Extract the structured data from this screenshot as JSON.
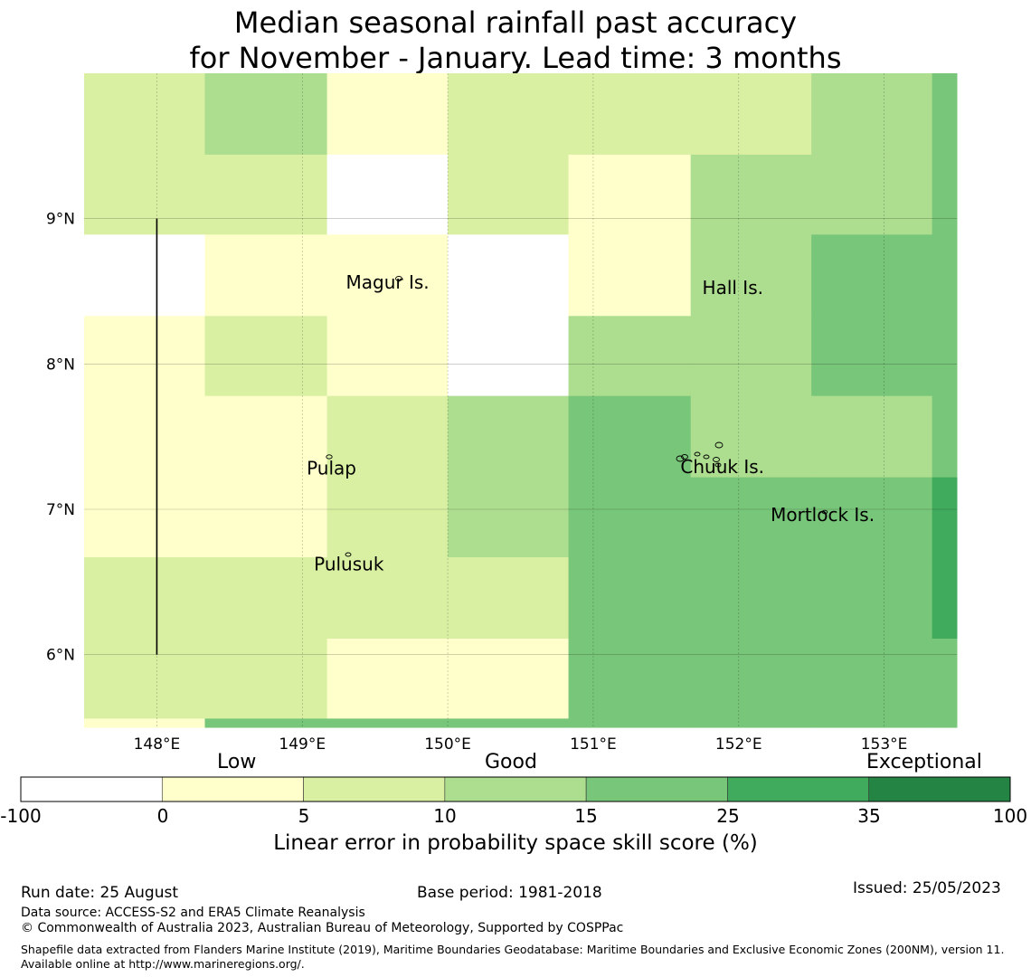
{
  "title": {
    "line1": "Median seasonal rainfall past accuracy",
    "line2": "for November - January. Lead time: 3 months"
  },
  "map": {
    "lon_range": [
      147.5,
      153.5
    ],
    "lat_range": [
      5.5,
      10.0
    ],
    "lon_ticks": [
      {
        "value": 148,
        "label": "148°E"
      },
      {
        "value": 149,
        "label": "149°E"
      },
      {
        "value": 150,
        "label": "150°E"
      },
      {
        "value": 151,
        "label": "151°E"
      },
      {
        "value": 152,
        "label": "152°E"
      },
      {
        "value": 153,
        "label": "153°E"
      }
    ],
    "lat_ticks": [
      {
        "value": 9,
        "label": "9°N"
      },
      {
        "value": 8,
        "label": "8°N"
      },
      {
        "value": 7,
        "label": "7°N"
      },
      {
        "value": 6,
        "label": "6°N"
      }
    ],
    "grid_lon_edges": [
      147.5,
      148.33,
      149.17,
      150.0,
      150.83,
      151.67,
      152.5,
      153.33,
      153.5
    ],
    "grid_lat_edges": [
      10.0,
      9.44,
      8.89,
      8.33,
      7.78,
      7.22,
      6.67,
      6.11,
      5.56,
      5.5
    ],
    "skill_classes": [
      [
        2,
        3,
        1,
        2,
        2,
        2,
        3,
        4
      ],
      [
        2,
        2,
        0,
        2,
        1,
        3,
        3,
        4
      ],
      [
        0,
        1,
        1,
        0,
        1,
        3,
        4,
        4
      ],
      [
        1,
        2,
        1,
        0,
        3,
        3,
        4,
        4
      ],
      [
        1,
        1,
        2,
        3,
        4,
        3,
        3,
        4
      ],
      [
        1,
        1,
        2,
        3,
        4,
        4,
        4,
        5
      ],
      [
        2,
        2,
        2,
        2,
        4,
        4,
        4,
        5
      ],
      [
        2,
        2,
        1,
        1,
        4,
        4,
        4,
        4
      ],
      [
        1,
        4,
        4,
        4,
        4,
        4,
        4,
        4
      ]
    ],
    "boundary_line": {
      "lon": 148.0,
      "lat_from": 9.0,
      "lat_to": 6.0
    },
    "places": [
      {
        "name": "Magur Is.",
        "lon": 149.3,
        "lat": 8.52
      },
      {
        "name": "Hall Is.",
        "lon": 151.75,
        "lat": 8.48
      },
      {
        "name": "Pulap",
        "lon": 149.03,
        "lat": 7.24
      },
      {
        "name": "Chuuk Is.",
        "lon": 151.6,
        "lat": 7.25
      },
      {
        "name": "Mortlock Is.",
        "lon": 152.22,
        "lat": 6.92
      },
      {
        "name": "Pulusuk",
        "lon": 149.08,
        "lat": 6.58
      }
    ]
  },
  "colorbar": {
    "boundaries": [
      "-100",
      "0",
      "5",
      "10",
      "15",
      "25",
      "35",
      "100"
    ],
    "colors": [
      "#ffffff",
      "#ffffcc",
      "#d9f0a3",
      "#addd8e",
      "#78c679",
      "#41ab5d",
      "#238443"
    ],
    "categories": [
      "Low",
      "Good",
      "Exceptional"
    ],
    "title": "Linear error in probability space skill score (%)"
  },
  "footer": {
    "run_date": "Run date: 25 August",
    "base_period": "Base period: 1981-2018",
    "issued": "Issued: 25/05/2023",
    "data_source": "Data source: ACCESS-S2 and ERA5 Climate Reanalysis",
    "copyright": "© Commonwealth of Australia 2023, Australian Bureau of Meteorology, Supported by COSPPac",
    "shapefile_note": "Shapefile data extracted from Flanders Marine Institute (2019), Maritime Boundaries Geodatabase: Maritime Boundaries and Exclusive Economic Zones (200NM), version 11. Available online at http://www.marineregions.org/."
  }
}
